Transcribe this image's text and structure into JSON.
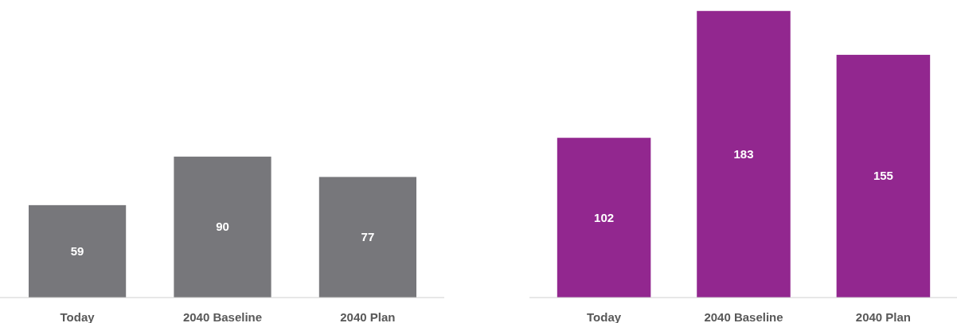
{
  "chart_data": [
    {
      "type": "bar",
      "categories": [
        "Today",
        "2040 Baseline",
        "2040 Plan"
      ],
      "values": [
        59,
        90,
        77
      ],
      "color": "#77777b",
      "ylim": [
        0,
        190
      ],
      "data_labels": true,
      "tick_labels": "x"
    },
    {
      "type": "bar",
      "categories": [
        "Today",
        "2040 Baseline",
        "2040 Plan"
      ],
      "values": [
        102,
        183,
        155
      ],
      "color": "#92278f",
      "ylim": [
        0,
        190
      ],
      "data_labels": true,
      "tick_labels": "x"
    }
  ]
}
